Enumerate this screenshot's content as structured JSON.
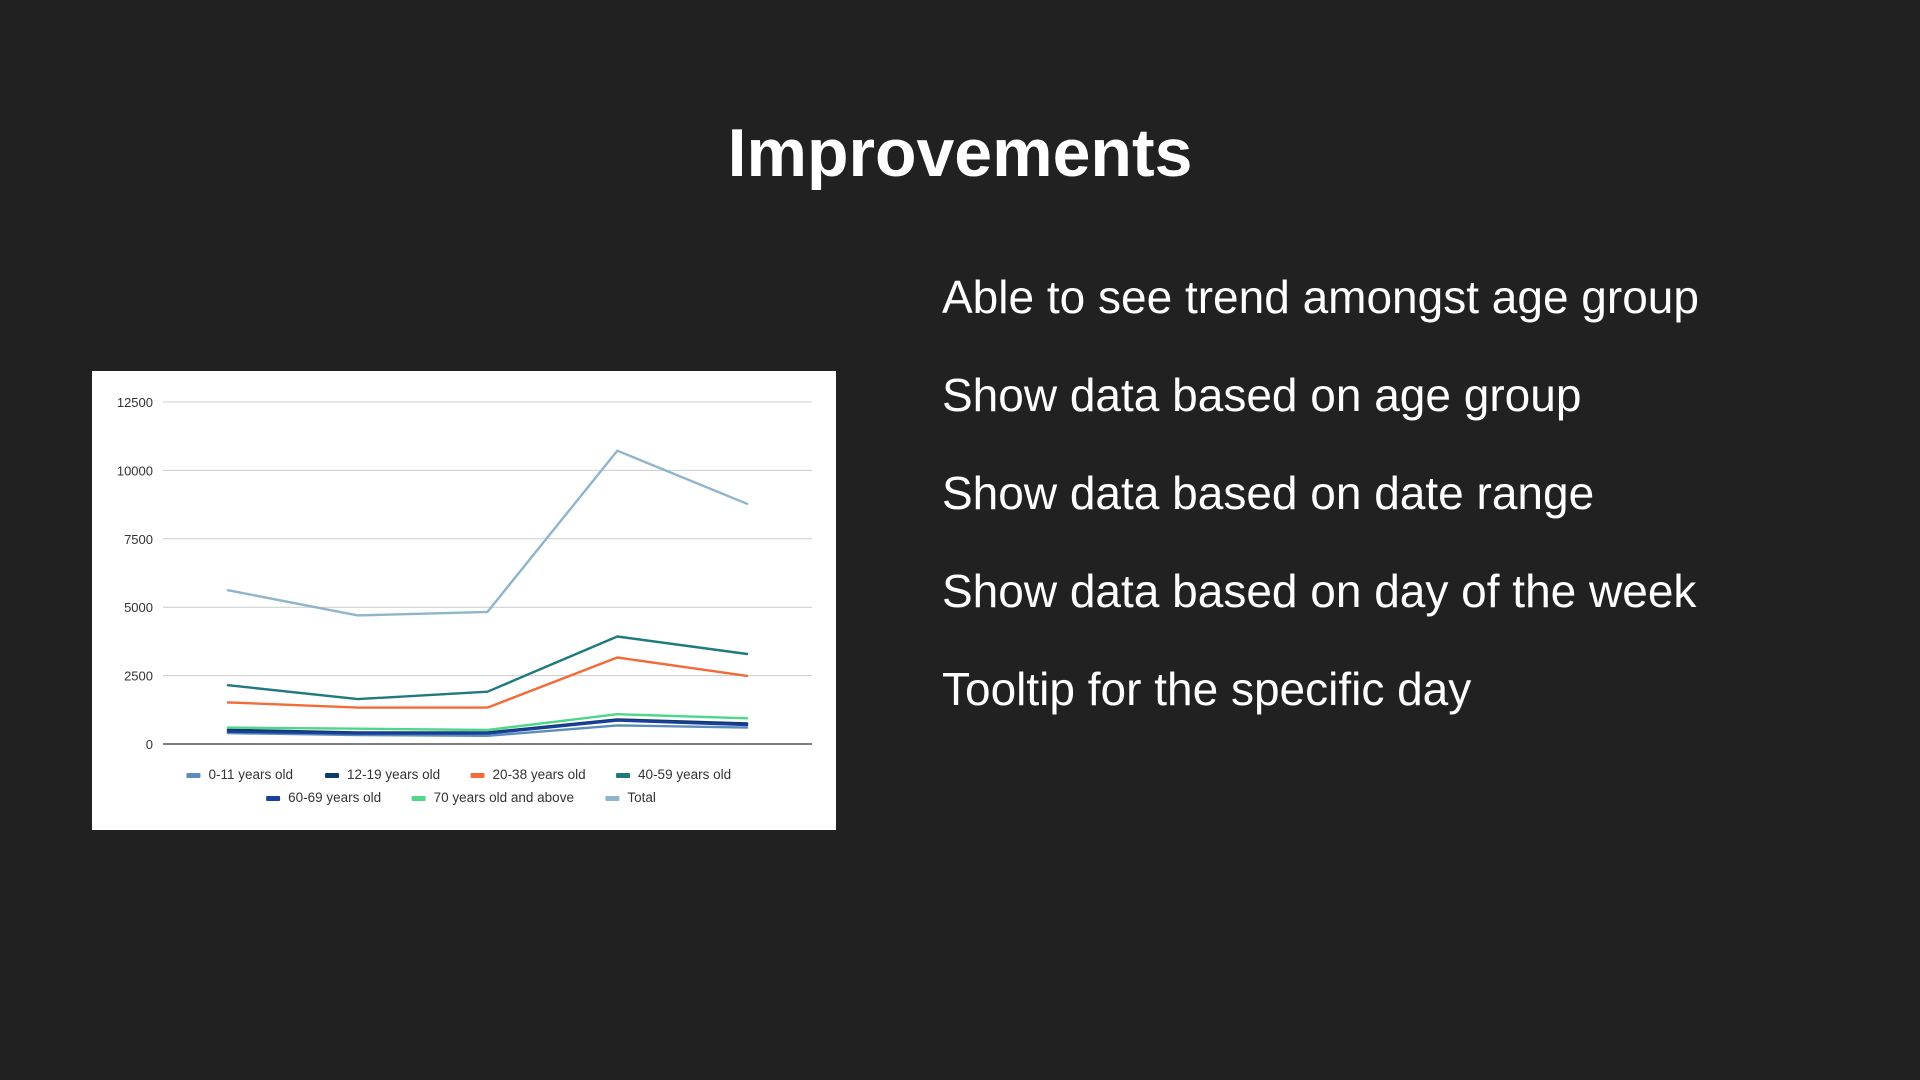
{
  "slide": {
    "title": "Improvements",
    "points": [
      "Able to see trend amongst age group",
      "Show data based on age group",
      "Show data based on date range",
      "Show data based on day of the week",
      "Tooltip for the specific day"
    ]
  },
  "chart_data": {
    "type": "line",
    "title": "",
    "xlabel": "",
    "ylabel": "",
    "x": [
      1,
      2,
      3,
      4,
      5
    ],
    "ylim": [
      0,
      12500
    ],
    "yticks": [
      0,
      2500,
      5000,
      7500,
      10000,
      12500
    ],
    "grid": true,
    "legend_position": "bottom",
    "series": [
      {
        "name": "0-11 years old",
        "color": "#5b8db8",
        "values": [
          400,
          330,
          300,
          680,
          600
        ]
      },
      {
        "name": "12-19 years old",
        "color": "#0d3b66",
        "values": [
          520,
          420,
          420,
          900,
          750
        ]
      },
      {
        "name": "20-38 years old",
        "color": "#f26b38",
        "values": [
          1520,
          1330,
          1330,
          3160,
          2490
        ]
      },
      {
        "name": "40-59 years old",
        "color": "#1f7a80",
        "values": [
          2150,
          1640,
          1910,
          3930,
          3290
        ]
      },
      {
        "name": "60-69 years old",
        "color": "#1a3fa0",
        "values": [
          450,
          380,
          380,
          860,
          690
        ]
      },
      {
        "name": "70 years old and above",
        "color": "#4fd68a",
        "values": [
          600,
          560,
          510,
          1090,
          940
        ]
      },
      {
        "name": "Total",
        "color": "#8fb5cc",
        "values": [
          5620,
          4700,
          4830,
          10720,
          8780
        ]
      }
    ]
  }
}
